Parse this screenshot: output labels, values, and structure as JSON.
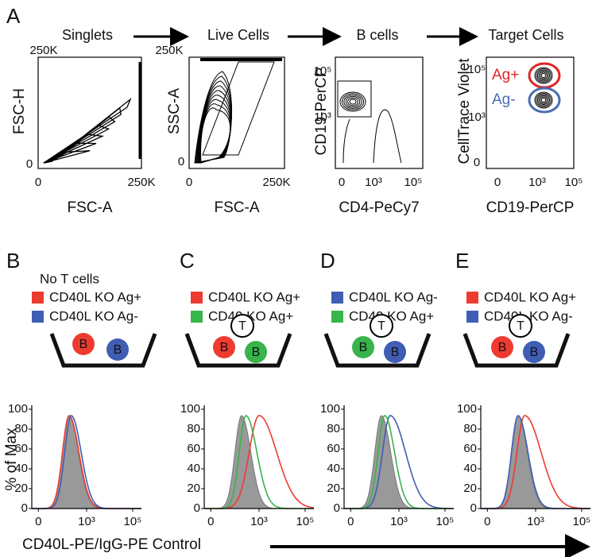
{
  "figure": {
    "panel_a": {
      "label": "A",
      "steps": [
        "Singlets",
        "Live Cells",
        "B cells",
        "Target Cells"
      ],
      "plots": [
        {
          "x_label": "FSC-A",
          "y_label": "FSC-H",
          "x_ticks": [
            "0",
            "250K"
          ],
          "y_ticks": [
            "0",
            "250K"
          ]
        },
        {
          "x_label": "FSC-A",
          "y_label": "SSC-A",
          "x_ticks": [
            "0",
            "250K"
          ],
          "y_ticks": [
            "0",
            "250K"
          ]
        },
        {
          "x_label": "CD4-PeCy7",
          "y_label": "CD19-PerCP",
          "x_ticks": [
            "0",
            "10³",
            "10⁵"
          ],
          "y_ticks": [
            "10³",
            "10⁵"
          ]
        },
        {
          "x_label": "CD19-PerCP",
          "y_label": "CellTrace Violet",
          "x_ticks": [
            "0",
            "10³",
            "10⁵"
          ],
          "y_ticks": [
            "0",
            "10³",
            "10⁵"
          ],
          "gates": [
            {
              "label": "Ag+",
              "color": "#e02424"
            },
            {
              "label": "Ag-",
              "color": "#4a6cb3"
            }
          ]
        }
      ]
    },
    "histogram_panels": [
      {
        "label": "B",
        "note": "No T cells",
        "legend": [
          {
            "name": "CD40L KO Ag+",
            "color": "#ee3b30"
          },
          {
            "name": "CD40L KO Ag-",
            "color": "#3f5db3"
          }
        ],
        "cells": [
          {
            "letter": "B",
            "color": "#ee3b30"
          },
          {
            "letter": "B",
            "color": "#3f5db3"
          }
        ]
      },
      {
        "label": "C",
        "legend": [
          {
            "name": "CD40L KO Ag+",
            "color": "#ee3b30"
          },
          {
            "name": "CD40 KO Ag+",
            "color": "#37b44a"
          }
        ],
        "cells": [
          {
            "letter": "T",
            "color": "#ffffff"
          },
          {
            "letter": "B",
            "color": "#ee3b30"
          },
          {
            "letter": "B",
            "color": "#37b44a"
          }
        ]
      },
      {
        "label": "D",
        "legend": [
          {
            "name": "CD40L KO Ag-",
            "color": "#3f5db3"
          },
          {
            "name": "CD40 KO Ag+",
            "color": "#37b44a"
          }
        ],
        "cells": [
          {
            "letter": "T",
            "color": "#ffffff"
          },
          {
            "letter": "B",
            "color": "#37b44a"
          },
          {
            "letter": "B",
            "color": "#3f5db3"
          }
        ]
      },
      {
        "label": "E",
        "legend": [
          {
            "name": "CD40L KO Ag+",
            "color": "#ee3b30"
          },
          {
            "name": "CD40L KO Ag-",
            "color": "#3f5db3"
          }
        ],
        "cells": [
          {
            "letter": "T",
            "color": "#ffffff"
          },
          {
            "letter": "B",
            "color": "#ee3b30"
          },
          {
            "letter": "B",
            "color": "#3f5db3"
          }
        ]
      }
    ],
    "histogram_axes": {
      "y_label": "% of Max",
      "x_label": "CD40L-PE/IgG-PE Control",
      "y_ticks": [
        0,
        20,
        40,
        60,
        80,
        100
      ],
      "x_ticks": [
        "0",
        "10³",
        "10⁵"
      ]
    }
  }
}
